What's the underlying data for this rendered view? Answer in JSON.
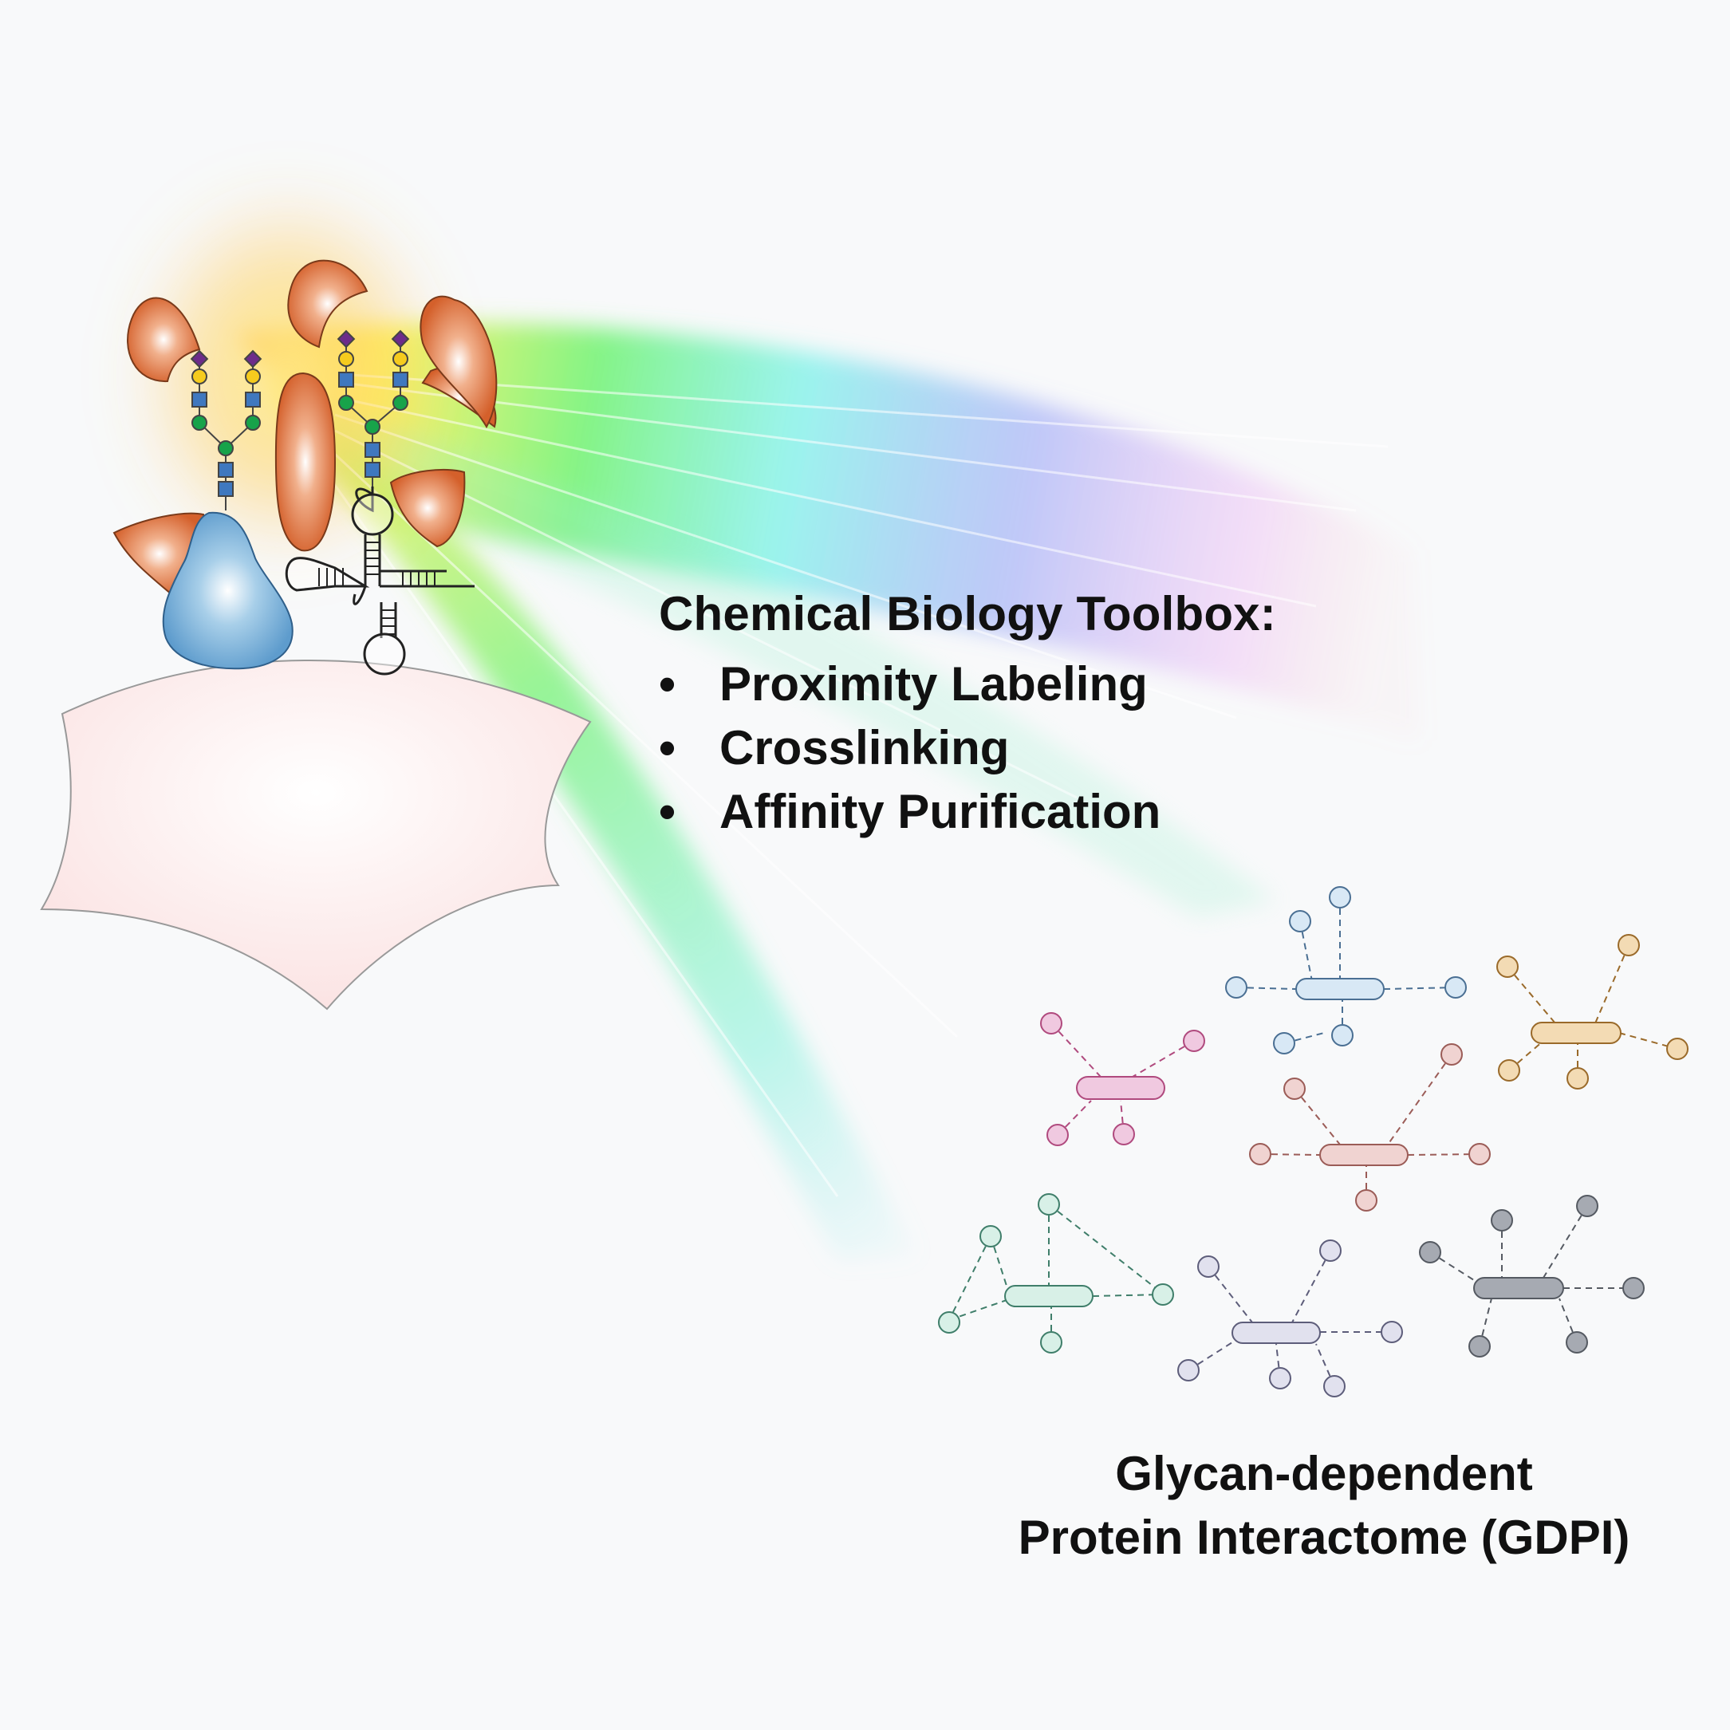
{
  "toolbox": {
    "title": "Chemical Biology Toolbox:",
    "bullet": "•",
    "items": [
      "Proximity Labeling",
      "Crosslinking",
      "Affinity Purification"
    ]
  },
  "result": {
    "line1": "Glycan-dependent",
    "line2": "Protein Interactome (GDPI)"
  },
  "colors": {
    "background": "#f8f9fa",
    "cell": "#fbe7e7",
    "interacting_protein": "#d5622e",
    "glycoprotein": "#6aa6d3",
    "sialic_acid": "#6d2c8a",
    "galactose": "#f5cb1e",
    "glcnac": "#3f78bf",
    "mannose": "#17a34a",
    "networks": [
      "#f0c9e0",
      "#d8e8f5",
      "#f3dbb4",
      "#f0d3d1",
      "#d8f0e7",
      "#e1e1ee",
      "#a6aab2"
    ]
  }
}
